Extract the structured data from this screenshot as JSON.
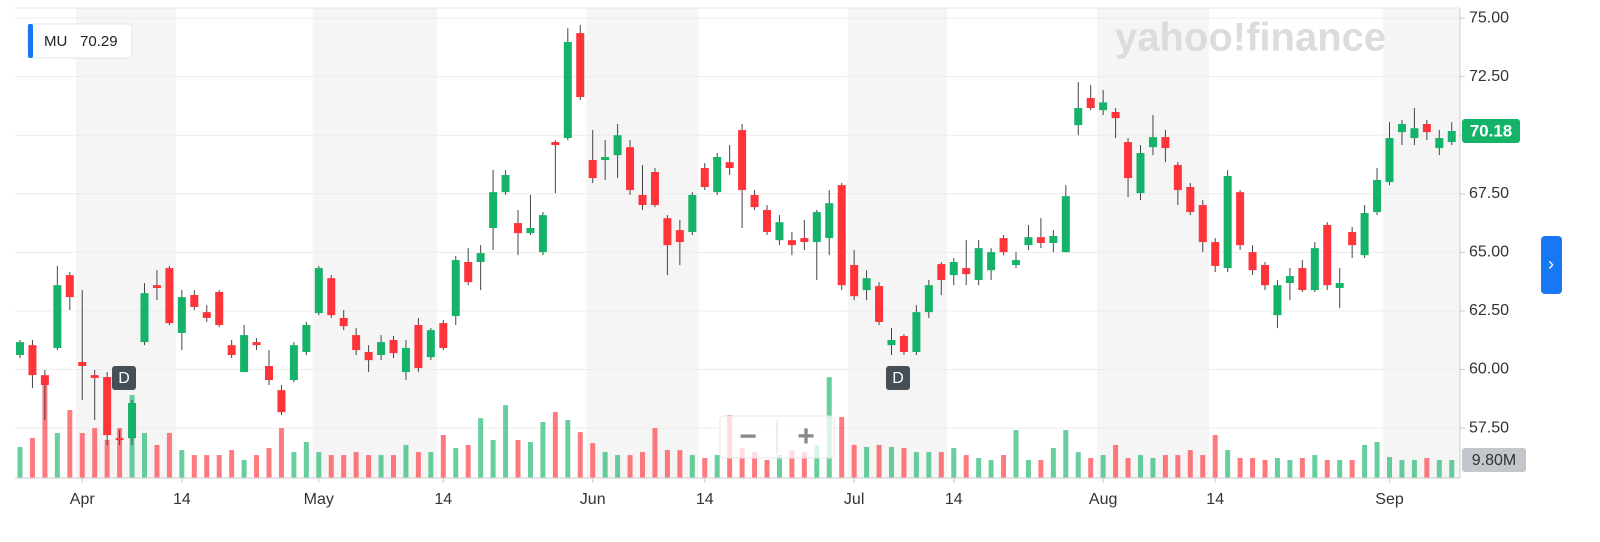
{
  "legend": {
    "symbol": "MU",
    "value": 70.29
  },
  "watermark": "yahoo!finance",
  "zoom": {
    "out": "−",
    "in": "+"
  },
  "side_button": "›",
  "chart_data": {
    "type": "candlestick",
    "categories": [
      null,
      null,
      null,
      null,
      null,
      "Apr",
      null,
      null,
      null,
      null,
      null,
      null,
      null,
      "14",
      null,
      null,
      null,
      null,
      null,
      null,
      null,
      null,
      null,
      null,
      "May",
      null,
      null,
      null,
      null,
      null,
      null,
      null,
      null,
      null,
      "14",
      null,
      null,
      null,
      null,
      null,
      null,
      null,
      null,
      null,
      null,
      null,
      "Jun",
      null,
      null,
      null,
      null,
      null,
      null,
      null,
      null,
      "14",
      null,
      null,
      null,
      null,
      null,
      null,
      null,
      null,
      null,
      null,
      null,
      "Jul",
      null,
      null,
      null,
      null,
      null,
      null,
      null,
      "14",
      null,
      null,
      null,
      null,
      null,
      null,
      null,
      null,
      null,
      null,
      null,
      "Aug",
      null,
      null,
      null,
      null,
      null,
      null,
      null,
      null,
      "14",
      null,
      null,
      null,
      null,
      null,
      null,
      null,
      null,
      null,
      null,
      null,
      null,
      null,
      "Sep",
      null,
      null,
      null,
      null,
      null
    ],
    "open": [
      60.62,
      61.04,
      59.76,
      60.92,
      64.03,
      60.32,
      59.76,
      59.68,
      57.07,
      57.07,
      61.17,
      63.6,
      64.33,
      61.56,
      63.18,
      62.45,
      63.31,
      61.04,
      59.89,
      61.17,
      60.15,
      59.12,
      59.55,
      60.75,
      62.41,
      63.9,
      62.2,
      61.47,
      60.75,
      60.62,
      61.26,
      59.89,
      61.9,
      60.53,
      61.98,
      62.28,
      64.59,
      64.59,
      66.04,
      67.57,
      66.25,
      65.82,
      65.01,
      69.71,
      69.88,
      74.36,
      68.94,
      68.94,
      69.15,
      69.49,
      67.45,
      68.43,
      66.46,
      65.95,
      65.87,
      68.6,
      67.57,
      68.85,
      70.22,
      67.45,
      66.81,
      65.52,
      65.52,
      65.61,
      65.44,
      65.61,
      67.87,
      64.46,
      63.39,
      63.56,
      61.04,
      61.43,
      60.75,
      62.45,
      64.5,
      64.03,
      64.33,
      63.82,
      64.24,
      65.61,
      64.46,
      65.31,
      65.65,
      65.4,
      65.01,
      70.43,
      71.59,
      71.07,
      70.99,
      69.71,
      67.53,
      69.49,
      69.92,
      68.73,
      67.79,
      67.02,
      65.44,
      64.33,
      67.57,
      65.01,
      64.46,
      62.32,
      63.69,
      64.33,
      63.39,
      66.17,
      63.48,
      65.87,
      64.88,
      66.72,
      68.0,
      70.13,
      69.88,
      70.48,
      69.45,
      69.71
    ],
    "high": [
      61.26,
      61.26,
      59.98,
      64.42,
      64.16,
      63.39,
      59.98,
      59.89,
      57.42,
      58.7,
      63.69,
      64.24,
      64.42,
      63.39,
      63.39,
      62.75,
      63.39,
      61.26,
      61.9,
      61.34,
      60.83,
      59.34,
      61.17,
      62.03,
      64.42,
      64.03,
      62.54,
      61.77,
      61.04,
      61.47,
      61.43,
      61.26,
      62.2,
      61.77,
      62.11,
      64.84,
      65.18,
      65.31,
      68.51,
      68.51,
      66.81,
      67.45,
      66.72,
      69.79,
      74.57,
      74.7,
      70.22,
      69.79,
      70.48,
      69.79,
      68.73,
      68.6,
      66.59,
      66.38,
      67.57,
      68.81,
      69.24,
      69.58,
      70.48,
      67.66,
      67.02,
      66.59,
      65.87,
      66.38,
      66.81,
      67.66,
      67.96,
      65.1,
      64.24,
      63.73,
      61.77,
      61.51,
      62.75,
      63.82,
      64.59,
      64.76,
      65.52,
      65.52,
      65.18,
      65.74,
      65.01,
      66.17,
      66.46,
      65.95,
      67.87,
      72.27,
      72.14,
      71.93,
      71.16,
      69.88,
      69.58,
      70.86,
      70.22,
      68.85,
      67.96,
      67.23,
      65.61,
      68.51,
      67.66,
      65.31,
      64.59,
      63.82,
      64.33,
      64.67,
      65.44,
      66.29,
      64.33,
      66.08,
      67.02,
      68.6,
      70.56,
      70.65,
      71.16,
      70.65,
      70.22,
      70.56
    ],
    "low": [
      60.49,
      59.21,
      57.84,
      60.83,
      62.54,
      58.7,
      57.84,
      56.78,
      56.78,
      56.78,
      61.04,
      62.96,
      61.9,
      60.83,
      62.54,
      62.03,
      61.81,
      60.49,
      59.89,
      60.83,
      59.34,
      58.06,
      59.46,
      60.62,
      62.32,
      62.2,
      61.68,
      60.62,
      59.89,
      60.4,
      60.49,
      59.55,
      59.89,
      60.4,
      60.83,
      61.9,
      63.6,
      63.39,
      65.1,
      67.45,
      64.88,
      65.74,
      64.88,
      67.53,
      69.79,
      71.5,
      67.96,
      68.09,
      68.17,
      67.45,
      66.81,
      66.93,
      64.03,
      64.46,
      65.74,
      67.66,
      67.45,
      68.3,
      66.04,
      66.81,
      65.74,
      65.31,
      64.88,
      65.1,
      63.82,
      64.88,
      63.39,
      62.96,
      62.96,
      61.9,
      60.62,
      60.62,
      60.62,
      62.2,
      63.18,
      63.6,
      63.6,
      63.6,
      63.82,
      64.88,
      64.33,
      65.1,
      65.18,
      65.01,
      65.01,
      70.0,
      71.07,
      70.86,
      69.88,
      67.36,
      67.23,
      69.15,
      68.85,
      67.02,
      66.59,
      65.01,
      64.16,
      64.16,
      65.1,
      64.03,
      63.39,
      61.77,
      62.96,
      63.31,
      63.31,
      63.39,
      62.62,
      64.76,
      64.76,
      66.59,
      67.87,
      69.58,
      69.58,
      69.79,
      69.15,
      69.58
    ],
    "close": [
      61.17,
      59.76,
      59.34,
      63.6,
      63.09,
      60.15,
      59.64,
      57.2,
      56.99,
      58.57,
      63.26,
      63.48,
      61.98,
      63.09,
      62.67,
      62.2,
      61.9,
      60.62,
      61.47,
      61.04,
      59.55,
      58.18,
      61.04,
      61.9,
      64.33,
      62.32,
      61.85,
      60.83,
      60.4,
      61.17,
      60.7,
      60.92,
      60.06,
      61.68,
      60.92,
      64.67,
      63.73,
      64.97,
      67.57,
      68.3,
      65.82,
      66.04,
      66.59,
      69.58,
      73.98,
      71.63,
      68.17,
      69.07,
      70.0,
      67.66,
      67.02,
      67.02,
      65.31,
      65.44,
      67.45,
      67.79,
      69.07,
      68.6,
      67.66,
      66.93,
      65.87,
      66.29,
      65.31,
      65.44,
      66.72,
      67.1,
      63.6,
      63.13,
      63.9,
      62.03,
      61.26,
      60.75,
      62.45,
      63.6,
      63.82,
      64.59,
      64.07,
      65.18,
      65.01,
      65.01,
      64.67,
      65.65,
      65.4,
      65.7,
      67.4,
      71.16,
      71.16,
      71.4,
      70.73,
      68.17,
      69.24,
      69.92,
      69.45,
      67.66,
      66.72,
      65.44,
      64.42,
      68.26,
      65.31,
      64.24,
      63.6,
      63.6,
      63.99,
      63.39,
      65.18,
      63.6,
      63.69,
      65.31,
      66.68,
      68.09,
      69.88,
      70.48,
      70.3,
      70.13,
      69.88,
      70.18
    ],
    "volume": [
      16.9,
      21.8,
      54.9,
      24.5,
      37.0,
      24.5,
      27.2,
      20.7,
      27.2,
      45.2,
      24.5,
      18.0,
      24.5,
      15.2,
      12.5,
      12.5,
      12.5,
      15.2,
      9.8,
      12.5,
      16.3,
      27.2,
      14.1,
      19.6,
      14.1,
      12.5,
      12.5,
      14.1,
      12.5,
      12.5,
      12.5,
      18.0,
      14.1,
      14.1,
      23.4,
      16.3,
      18.0,
      32.6,
      20.7,
      39.7,
      20.7,
      19.6,
      30.5,
      35.9,
      31.6,
      25.0,
      19.0,
      14.1,
      12.5,
      12.5,
      14.1,
      27.2,
      15.2,
      15.2,
      12.5,
      10.9,
      12.5,
      34.3,
      16.3,
      14.1,
      9.8,
      12.5,
      15.2,
      14.1,
      18.0,
      54.9,
      33.2,
      18.0,
      16.9,
      18.0,
      16.9,
      16.3,
      14.1,
      14.1,
      14.1,
      16.3,
      12.5,
      10.9,
      9.8,
      12.5,
      26.1,
      9.8,
      9.8,
      16.3,
      26.1,
      14.1,
      10.9,
      12.5,
      18.0,
      10.9,
      12.5,
      10.9,
      12.5,
      12.5,
      15.2,
      12.5,
      23.4,
      15.2,
      10.9,
      10.9,
      9.8,
      10.9,
      9.8,
      10.9,
      12.5,
      9.8,
      9.8,
      9.8,
      18.0,
      19.6,
      11.4,
      9.8,
      9.8,
      10.9,
      9.8,
      9.8
    ],
    "volume_label": {
      "value": 9.8,
      "label": "9.80M"
    },
    "dividend_markers": [
      "D",
      "D"
    ],
    "ylim": [
      55.37,
      75.43
    ],
    "yticks": [
      {
        "value": 57.5,
        "label": "57.50"
      },
      {
        "value": 60,
        "label": "60.00"
      },
      {
        "value": 62.5,
        "label": "62.50"
      },
      {
        "value": 65,
        "label": "65.00"
      },
      {
        "value": 67.5,
        "label": "67.50"
      },
      {
        "value": 70,
        "label": "70.00"
      },
      {
        "value": 72.5,
        "label": "72.50"
      },
      {
        "value": 75,
        "label": "75.00"
      }
    ],
    "y2lim": [
      0,
      256
    ],
    "grid": true,
    "up_color": "#15b36a",
    "down_color": "#ff333a"
  }
}
